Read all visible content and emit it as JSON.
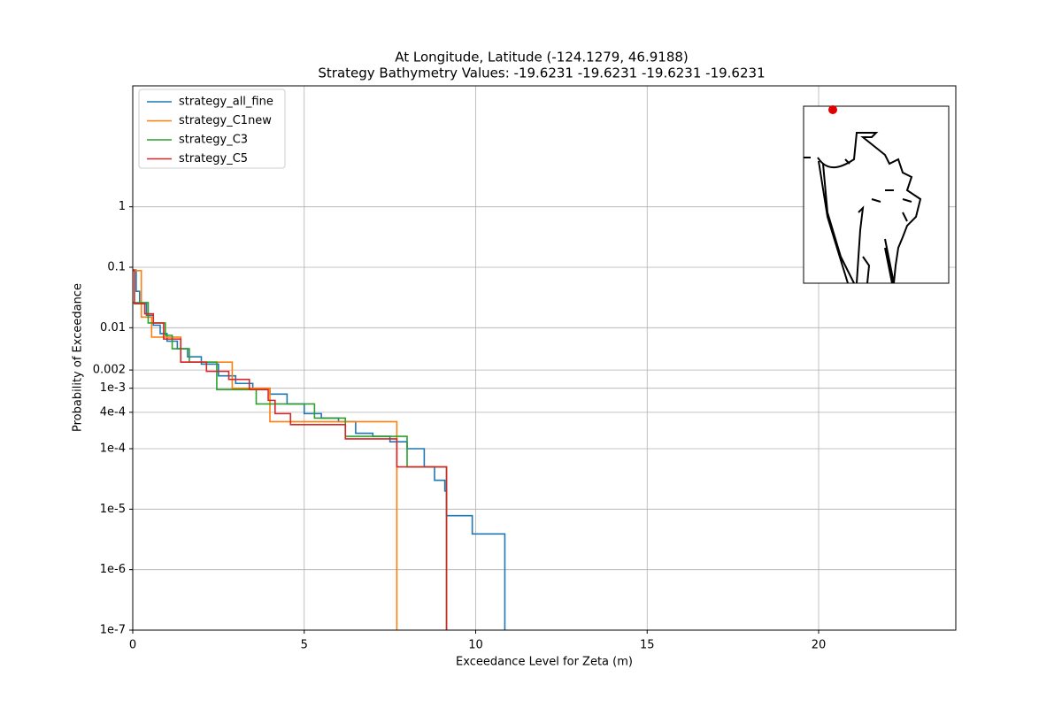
{
  "chart_data": {
    "type": "step",
    "title": "At Longitude, Latitude (-124.1279,  46.9188)",
    "subtitle": "Strategy Bathymetry Values:  -19.6231  -19.6231  -19.6231  -19.6231",
    "xlabel": "Exceedance Level for Zeta (m)",
    "ylabel": "Probability of Exceedance",
    "xlim": [
      0,
      24
    ],
    "xticks": [
      0,
      5,
      10,
      15,
      20
    ],
    "ylim": [
      1e-07,
      100
    ],
    "log_y": true,
    "grid": true,
    "legend": "upper left",
    "yticks": [
      {
        "value": 1e-07,
        "label": "1e-7"
      },
      {
        "value": 1e-06,
        "label": "1e-6"
      },
      {
        "value": 1e-05,
        "label": "1e-5"
      },
      {
        "value": 0.0001,
        "label": "1e-4"
      },
      {
        "value": 0.0004,
        "label": "4e-4"
      },
      {
        "value": 0.001,
        "label": "1e-3"
      },
      0.002,
      0.01,
      0.1,
      1
    ],
    "series": [
      {
        "name": "strategy_all_fine",
        "color": "#1f77b4",
        "x": [
          0,
          0.1,
          0.2,
          0.4,
          0.6,
          0.8,
          1.0,
          1.3,
          1.6,
          2.0,
          2.5,
          3.0,
          3.5,
          4.0,
          4.5,
          5.0,
          5.5,
          6.0,
          6.5,
          7.0,
          7.5,
          8.0,
          8.5,
          8.8,
          9.1,
          9.15,
          9.9,
          10.85
        ],
        "values": [
          0.09,
          0.04,
          0.025,
          0.016,
          0.011,
          0.008,
          0.006,
          0.0045,
          0.0033,
          0.0025,
          0.0016,
          0.0012,
          0.001,
          0.0008,
          0.00055,
          0.00038,
          0.00032,
          0.00028,
          0.00018,
          0.00016,
          0.00013,
          0.0001,
          5e-05,
          3e-05,
          2e-05,
          7.8e-06,
          3.9e-06,
          0
        ]
      },
      {
        "name": "strategy_C1new",
        "color": "#ff7f0e",
        "x": [
          0,
          0.25,
          0.55,
          1.4,
          2.9,
          4.0,
          7.7
        ],
        "values": [
          0.088,
          0.015,
          0.007,
          0.0027,
          0.001,
          0.00028,
          0
        ]
      },
      {
        "name": "strategy_C3",
        "color": "#2ca02c",
        "x": [
          0,
          0.45,
          0.95,
          1.15,
          1.65,
          2.45,
          3.6,
          5.3,
          6.2,
          8.0,
          9.15
        ],
        "values": [
          0.026,
          0.012,
          0.0075,
          0.0045,
          0.0027,
          0.00095,
          0.00055,
          0.00032,
          0.00016,
          5e-05,
          0
        ]
      },
      {
        "name": "strategy_C5",
        "color": "#d62728",
        "x": [
          0,
          0.05,
          0.35,
          0.6,
          0.9,
          1.4,
          2.15,
          2.8,
          3.4,
          3.95,
          4.15,
          4.6,
          6.2,
          7.7,
          9.15
        ],
        "values": [
          0.09,
          0.025,
          0.017,
          0.012,
          0.0065,
          0.0027,
          0.0019,
          0.0014,
          0.00095,
          0.00063,
          0.00038,
          0.00025,
          0.000145,
          5e-05,
          0
        ]
      }
    ]
  }
}
